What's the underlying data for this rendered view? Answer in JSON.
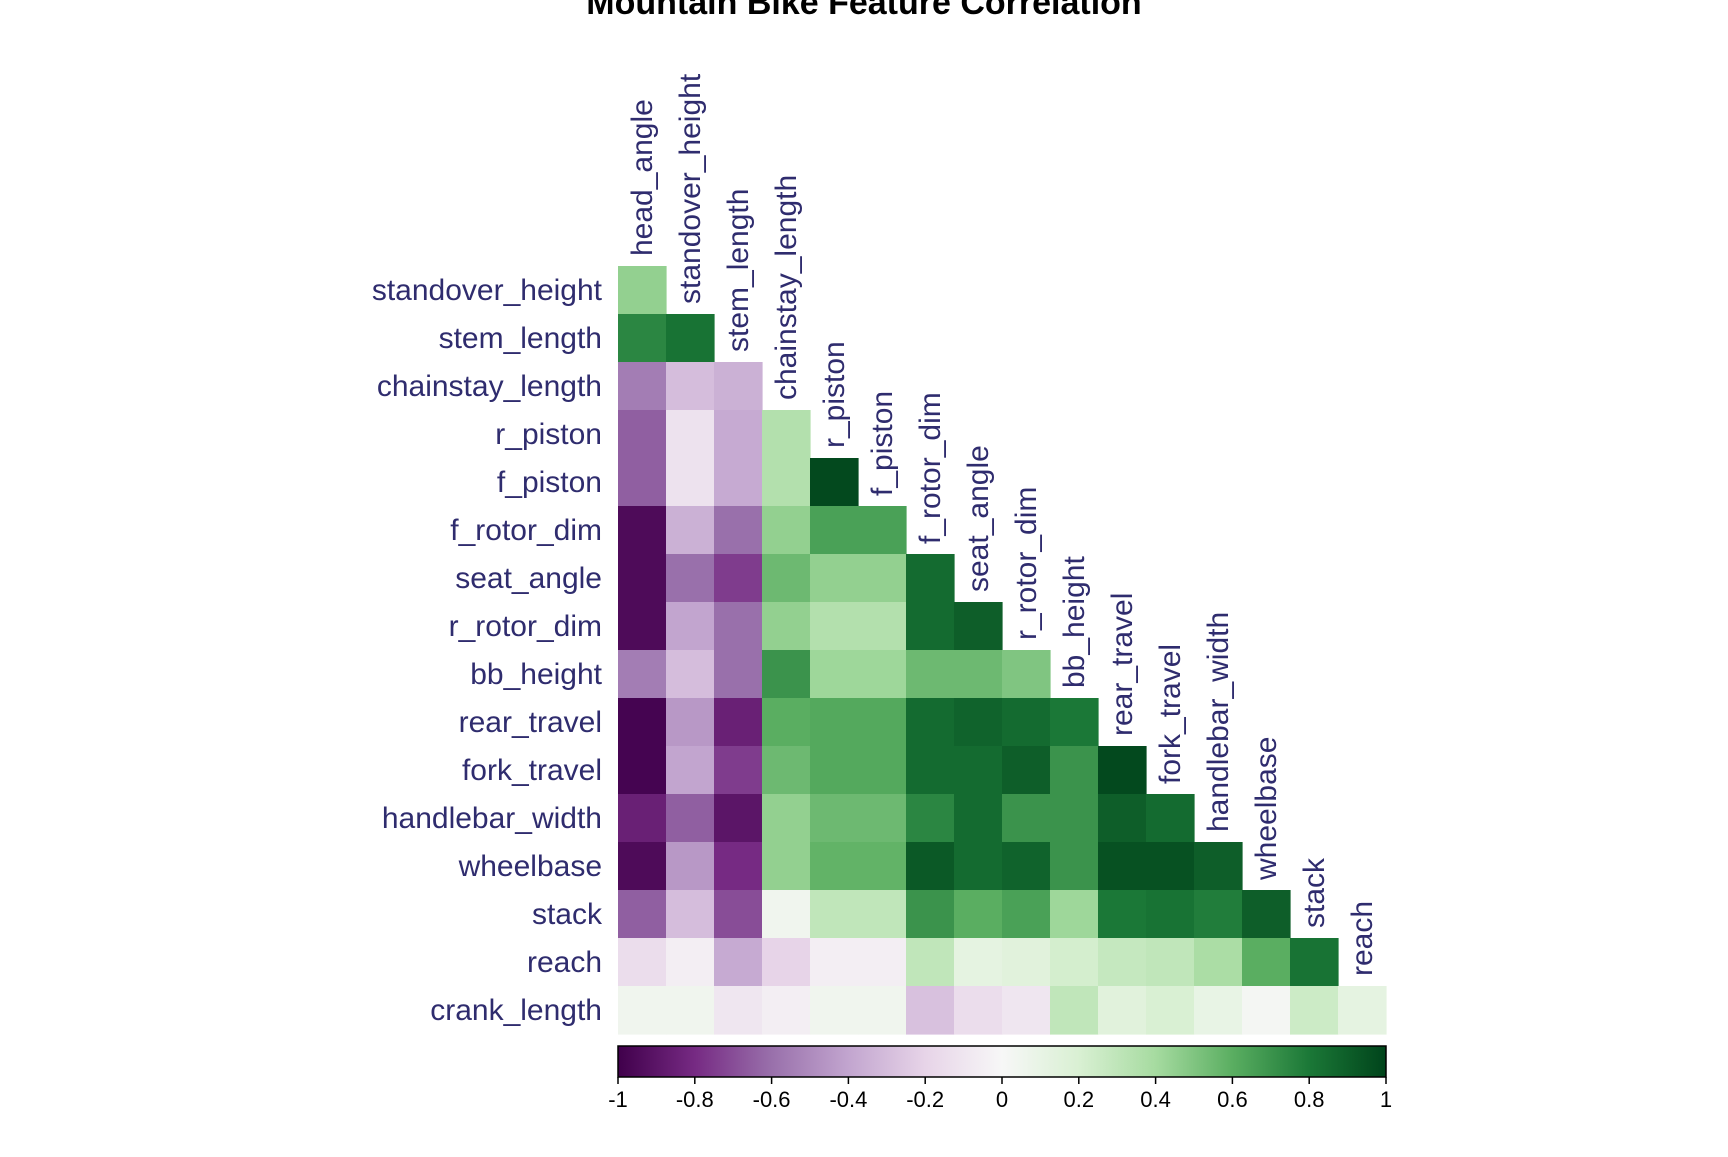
{
  "chart_data": {
    "type": "heatmap",
    "title": "Mountain Bike Feature Correlation",
    "variables": [
      "head_angle",
      "standover_height",
      "stem_length",
      "chainstay_length",
      "r_piston",
      "f_piston",
      "f_rotor_dim",
      "seat_angle",
      "r_rotor_dim",
      "bb_height",
      "rear_travel",
      "fork_travel",
      "handlebar_width",
      "wheelbase",
      "stack",
      "reach",
      "crank_length"
    ],
    "row_labels": [
      "standover_height",
      "stem_length",
      "chainstay_length",
      "r_piston",
      "f_piston",
      "f_rotor_dim",
      "seat_angle",
      "r_rotor_dim",
      "bb_height",
      "rear_travel",
      "fork_travel",
      "handlebar_width",
      "wheelbase",
      "stack",
      "reach",
      "crank_length"
    ],
    "column_labels": [
      "head_angle",
      "standover_height",
      "stem_length",
      "chainstay_length",
      "r_piston",
      "f_piston",
      "f_rotor_dim",
      "seat_angle",
      "r_rotor_dim",
      "bb_height",
      "rear_travel",
      "fork_travel",
      "handlebar_width",
      "wheelbase",
      "stack",
      "reach"
    ],
    "matrix_layout": "lower-triangle",
    "values": [
      [
        0.45
      ],
      [
        0.75,
        0.82
      ],
      [
        -0.55,
        -0.3,
        -0.35
      ],
      [
        -0.65,
        -0.12,
        -0.38,
        0.35
      ],
      [
        -0.65,
        -0.12,
        -0.38,
        0.35,
        0.98
      ],
      [
        -0.95,
        -0.35,
        -0.6,
        0.45,
        0.65,
        0.65
      ],
      [
        -0.95,
        -0.6,
        -0.75,
        0.55,
        0.45,
        0.45,
        0.85
      ],
      [
        -0.95,
        -0.4,
        -0.6,
        0.45,
        0.35,
        0.35,
        0.85,
        0.9
      ],
      [
        -0.55,
        -0.3,
        -0.6,
        0.7,
        0.42,
        0.42,
        0.55,
        0.55,
        0.5
      ],
      [
        -0.98,
        -0.45,
        -0.85,
        0.6,
        0.62,
        0.62,
        0.85,
        0.88,
        0.85,
        0.8
      ],
      [
        -0.98,
        -0.4,
        -0.75,
        0.55,
        0.62,
        0.62,
        0.85,
        0.85,
        0.9,
        0.7,
        0.98
      ],
      [
        -0.85,
        -0.65,
        -0.9,
        0.45,
        0.55,
        0.55,
        0.75,
        0.85,
        0.7,
        0.7,
        0.9,
        0.85
      ],
      [
        -0.95,
        -0.45,
        -0.8,
        0.45,
        0.58,
        0.58,
        0.92,
        0.85,
        0.88,
        0.7,
        0.95,
        0.95,
        0.9
      ],
      [
        -0.65,
        -0.3,
        -0.7,
        0.05,
        0.3,
        0.3,
        0.7,
        0.6,
        0.65,
        0.42,
        0.8,
        0.82,
        0.78,
        0.9
      ],
      [
        -0.15,
        -0.05,
        -0.38,
        -0.2,
        -0.05,
        -0.05,
        0.3,
        0.12,
        0.15,
        0.22,
        0.28,
        0.3,
        0.38,
        0.6,
        0.82
      ],
      [
        0.05,
        0.05,
        -0.1,
        -0.05,
        0.05,
        0.05,
        -0.28,
        -0.15,
        -0.1,
        0.3,
        0.15,
        0.2,
        0.1,
        0.02,
        0.25,
        0.12
      ]
    ],
    "color_scale": {
      "min": -1,
      "max": 1,
      "colors": [
        "#40004b",
        "#762a83",
        "#9970ab",
        "#c2a5cf",
        "#e7d4e8",
        "#f7f7f7",
        "#d9f0d3",
        "#a6dba0",
        "#5aae61",
        "#1b7837",
        "#00441b"
      ],
      "ticks": [
        -1,
        -0.8,
        -0.6,
        -0.4,
        -0.2,
        0,
        0.2,
        0.4,
        0.6,
        0.8,
        1
      ],
      "tick_labels": [
        "-1",
        "-0.8",
        "-0.6",
        "-0.4",
        "-0.2",
        "0",
        "0.2",
        "0.4",
        "0.6",
        "0.8",
        "1"
      ],
      "placement": "bottom"
    }
  }
}
